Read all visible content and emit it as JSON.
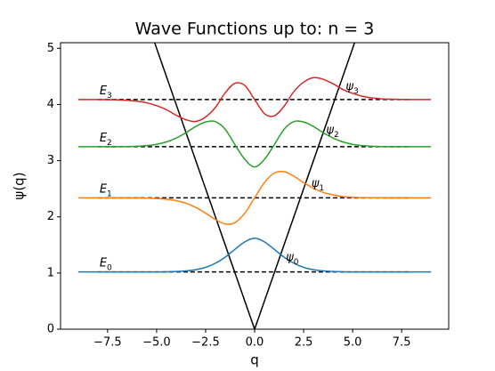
{
  "chart_data": {
    "type": "line",
    "title": "Wave Functions up to: n = 3",
    "x_label": "q",
    "y_label": "ψ(q)",
    "x": [
      -9,
      -8.5,
      -8,
      -7.5,
      -7,
      -6.5,
      -6,
      -5.5,
      -5,
      -4.5,
      -4,
      -3.5,
      -3,
      -2.5,
      -2,
      -1.5,
      -1,
      -0.5,
      0,
      0.5,
      1,
      1.5,
      2,
      2.5,
      3,
      3.5,
      4,
      4.5,
      5,
      5.5,
      6,
      6.5,
      7,
      7.5,
      8,
      8.5,
      9
    ],
    "series": [
      {
        "color": "#1f77b4",
        "values": [
          1.019,
          1.019,
          1.019,
          1.019,
          1.019,
          1.019,
          1.019,
          1.019,
          1.02,
          1.022,
          1.027,
          1.037,
          1.059,
          1.101,
          1.174,
          1.283,
          1.422,
          1.554,
          1.619,
          1.554,
          1.422,
          1.283,
          1.174,
          1.101,
          1.059,
          1.037,
          1.027,
          1.022,
          1.02,
          1.019,
          1.019,
          1.019,
          1.019,
          1.019,
          1.019,
          1.019,
          1.019
        ]
      },
      {
        "color": "#ff7f0e",
        "values": [
          2.338,
          2.338,
          2.338,
          2.338,
          2.338,
          2.338,
          2.336,
          2.334,
          2.327,
          2.314,
          2.287,
          2.242,
          2.167,
          2.066,
          1.952,
          1.873,
          1.898,
          2.066,
          2.338,
          2.61,
          2.778,
          2.803,
          2.724,
          2.61,
          2.509,
          2.434,
          2.389,
          2.362,
          2.349,
          2.342,
          2.34,
          2.338,
          2.338,
          2.338,
          2.338,
          2.338,
          2.338
        ]
      },
      {
        "color": "#2ca02c",
        "values": [
          3.248,
          3.248,
          3.248,
          3.248,
          3.248,
          3.251,
          3.256,
          3.268,
          3.291,
          3.334,
          3.403,
          3.498,
          3.608,
          3.688,
          3.695,
          3.558,
          3.282,
          3.024,
          2.888,
          3.024,
          3.282,
          3.558,
          3.695,
          3.688,
          3.608,
          3.498,
          3.403,
          3.334,
          3.291,
          3.268,
          3.256,
          3.251,
          3.248,
          3.248,
          3.248,
          3.248,
          3.248
        ]
      },
      {
        "color": "#d62728",
        "values": [
          4.088,
          4.088,
          4.088,
          4.086,
          4.082,
          4.075,
          4.059,
          4.03,
          3.978,
          3.908,
          3.808,
          3.728,
          3.698,
          3.778,
          3.948,
          4.208,
          4.378,
          4.338,
          4.088,
          3.838,
          3.798,
          3.968,
          4.228,
          4.398,
          4.478,
          4.448,
          4.368,
          4.268,
          4.198,
          4.146,
          4.117,
          4.101,
          4.094,
          4.09,
          4.088,
          4.088,
          4.088
        ]
      }
    ],
    "potential": {
      "color": "#000000",
      "x": [
        -5.1,
        0,
        5.1
      ],
      "values": [
        5.1,
        0,
        5.1
      ]
    },
    "level_span": [
      -8,
      8
    ],
    "levels": [
      {
        "label": "E",
        "sub": "0",
        "value": 1.019
      },
      {
        "label": "E",
        "sub": "1",
        "value": 2.338
      },
      {
        "label": "E",
        "sub": "2",
        "value": 3.248
      },
      {
        "label": "E",
        "sub": "3",
        "value": 4.088
      }
    ],
    "annotations": [
      {
        "text": "ψ",
        "sub": "0",
        "x": 1.6,
        "y": 1.28
      },
      {
        "text": "ψ",
        "sub": "1",
        "x": 2.9,
        "y": 2.6
      },
      {
        "text": "ψ",
        "sub": "2",
        "x": 3.65,
        "y": 3.55
      },
      {
        "text": "ψ",
        "sub": "3",
        "x": 4.65,
        "y": 4.32
      }
    ],
    "xlim": [
      -9.9,
      9.9
    ],
    "ylim": [
      0,
      5.1
    ],
    "xticks": [
      {
        "value": -7.5,
        "label": "−7.5"
      },
      {
        "value": -5,
        "label": "−5.0"
      },
      {
        "value": -2.5,
        "label": "−2.5"
      },
      {
        "value": 0,
        "label": "0.0"
      },
      2.5,
      {
        "value": 5,
        "label": "5.0"
      },
      7.5
    ],
    "yticks": [
      0,
      1,
      2,
      3,
      4,
      5
    ],
    "grid": false
  }
}
